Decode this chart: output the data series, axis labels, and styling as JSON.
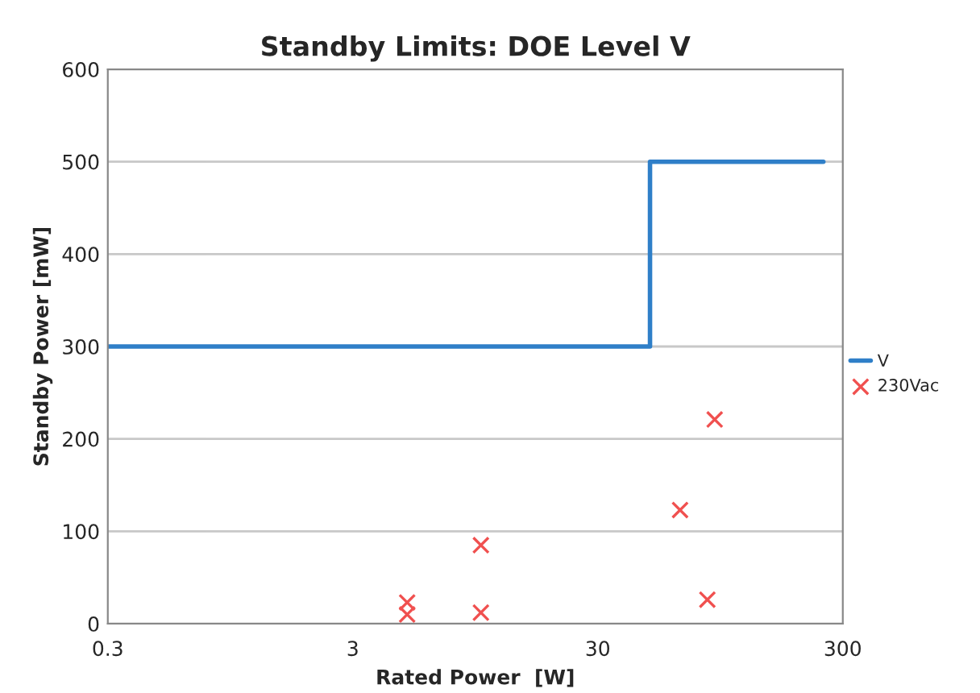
{
  "chart_data": {
    "type": "step",
    "title": "Standby Limits: DOE Level V",
    "xlabel": "Rated Power  [W]",
    "ylabel": "Standby Power [mW]",
    "log": "x",
    "xlim": [
      0.3,
      300
    ],
    "xticks": [
      0.3,
      3,
      30,
      300
    ],
    "ylim": [
      0,
      600
    ],
    "yticks": [
      0,
      100,
      200,
      300,
      400,
      500,
      600
    ],
    "grid": "y",
    "legend": "right",
    "series": [
      {
        "name": "V",
        "color": "#2f7fc8",
        "marker": "none",
        "x": [
          0.3,
          49,
          250
        ],
        "values": [
          300,
          500,
          500
        ]
      },
      {
        "name": "230Vac",
        "type": "scatter",
        "color": "#f0504f",
        "marker": "cross",
        "x": [
          5,
          5,
          10,
          10,
          65,
          84,
          90
        ],
        "values": [
          23,
          10,
          85,
          12,
          123,
          26,
          221
        ]
      }
    ]
  }
}
